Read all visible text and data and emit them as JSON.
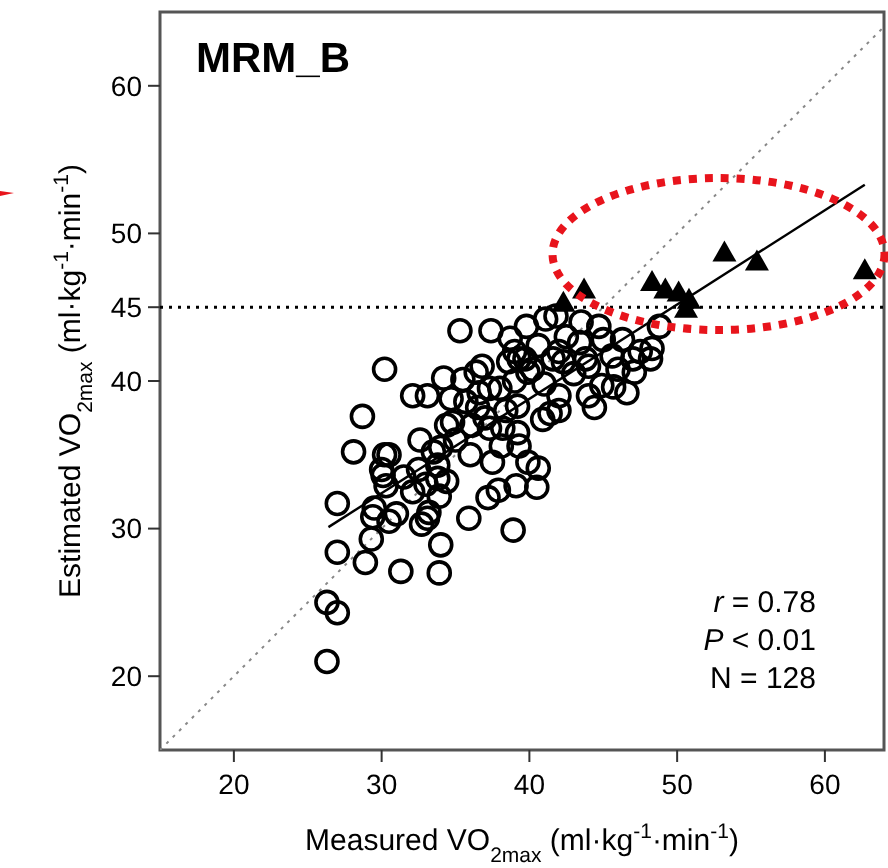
{
  "chart_data": {
    "type": "scatter",
    "title": "MRM_B",
    "xlabel": "Measured VO$_{2max}$ (ml·kg$^{-1}$·min$^{-1}$)",
    "ylabel": "Estimated VO$_{2max}$ (ml·kg$^{-1}$·min$^{-1}$)",
    "xlim": [
      15,
      64
    ],
    "ylim": [
      15,
      65
    ],
    "xticks": [
      20,
      30,
      40,
      50,
      60
    ],
    "yticks": [
      20,
      30,
      40,
      45,
      50,
      60
    ],
    "grid": false,
    "series": [
      {
        "marker": "circle",
        "color": "#000000",
        "x": [
          26.3,
          26.3,
          27.0,
          27.0,
          27.0,
          28.9,
          29.3,
          29.4,
          29.5,
          30.5,
          28.1,
          28.7,
          30.2,
          30.2,
          30.1,
          30.3,
          30.5,
          31.3,
          32.1,
          32.1,
          33.1,
          32.6,
          32.7,
          33.1,
          33.2,
          33.5,
          33.8,
          33.9,
          34.0,
          33.9,
          33.8,
          34.4,
          34.2,
          34.4,
          34.7,
          34.8,
          35.5,
          35.7,
          35.9,
          36.1,
          36.4,
          36.6,
          37.3,
          37.2,
          37.9,
          37.3,
          38.2,
          38.1,
          38.9,
          39.1,
          39.2,
          39.3,
          38.4,
          39.2,
          39.9,
          40.6,
          40.5,
          39.9,
          39.7,
          40.9,
          41.4,
          42.0,
          42.0,
          44.4,
          44.9,
          45.7,
          46.6,
          47.1,
          48.2,
          35.3,
          37.4,
          38.7,
          39.8,
          40.6,
          41.1,
          41.8,
          42.0,
          43.4,
          44.7,
          46.3,
          48.8,
          48.3,
          43.8,
          45.6,
          47.0,
          38.6,
          39.3,
          40.2,
          41.6,
          42.3,
          43.0,
          44.0,
          46.0,
          47.5,
          45.0,
          41.0,
          38.0,
          36.5,
          35.0,
          37.0,
          39.0,
          42.5,
          44.0,
          31.5,
          32.5,
          33.0,
          36.0,
          37.5,
          34.0,
          31.0,
          30.0,
          36.8,
          39.0,
          43.5
        ],
        "values": [
          21.0,
          25.0,
          24.3,
          28.4,
          31.7,
          27.7,
          29.3,
          30.8,
          31.4,
          30.5,
          35.2,
          37.6,
          40.8,
          35.0,
          33.6,
          32.9,
          35.0,
          27.1,
          32.5,
          39.0,
          39.0,
          36.0,
          30.3,
          30.7,
          31.1,
          35.2,
          34.3,
          32.2,
          28.9,
          27.0,
          33.4,
          33.2,
          40.2,
          37.0,
          38.8,
          37.2,
          40.1,
          38.6,
          30.7,
          37.0,
          40.6,
          39.2,
          39.5,
          32.1,
          32.6,
          36.8,
          36.8,
          35.6,
          29.9,
          32.9,
          36.5,
          35.6,
          38.0,
          38.3,
          34.5,
          34.1,
          32.8,
          40.6,
          41.5,
          37.4,
          37.8,
          39.0,
          38.0,
          38.2,
          39.7,
          39.6,
          39.2,
          40.6,
          41.5,
          43.4,
          43.4,
          42.9,
          43.7,
          42.4,
          44.2,
          44.4,
          42.0,
          42.6,
          43.7,
          42.8,
          43.7,
          42.2,
          41.5,
          41.7,
          41.5,
          41.3,
          41.5,
          40.8,
          41.5,
          41.3,
          40.5,
          41.0,
          40.8,
          42.0,
          42.8,
          39.8,
          39.5,
          38.2,
          36.0,
          37.5,
          40.0,
          43.0,
          39.0,
          33.5,
          34.0,
          33.0,
          35.0,
          34.5,
          35.5,
          31.0,
          34.0,
          41.0,
          42.0,
          44.0
        ]
      },
      {
        "marker": "triangle",
        "color": "#000000",
        "x": [
          42.3,
          43.7,
          48.3,
          49.2,
          50.1,
          50.8,
          50.6,
          53.2,
          55.4,
          62.7
        ],
        "values": [
          45.3,
          46.2,
          46.7,
          46.2,
          46.0,
          45.5,
          44.9,
          48.7,
          48.1,
          47.5
        ]
      },
      {
        "type": "line",
        "line_style": "solid",
        "color": "#000000",
        "x": [
          26.4,
          62.7
        ],
        "values": [
          30.1,
          53.3
        ]
      },
      {
        "type": "line",
        "line_style": "dotted",
        "color": "#888888",
        "x": [
          15,
          64
        ],
        "values": [
          15,
          64
        ]
      }
    ],
    "ref_lines": [
      {
        "axis": "y",
        "value": 45,
        "line_style": "dotted",
        "color": "#000000"
      }
    ],
    "annotations": [
      "r = 0.78",
      "P < 0.01",
      "N = 128"
    ]
  }
}
